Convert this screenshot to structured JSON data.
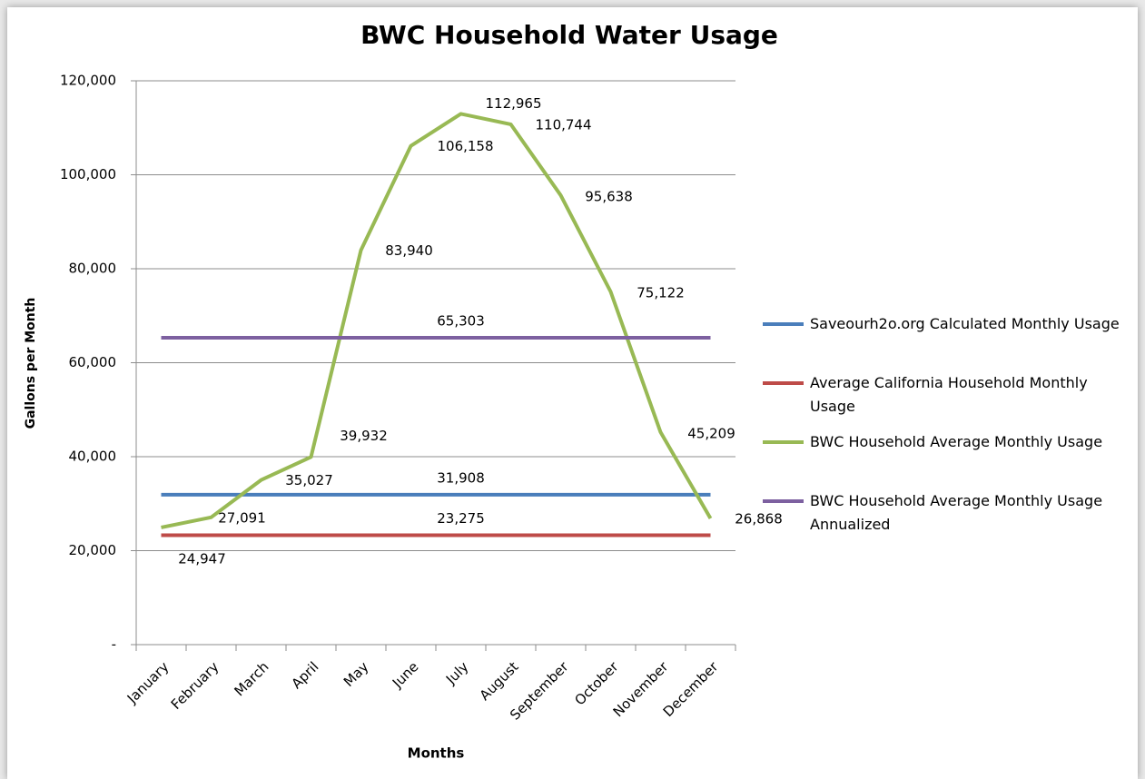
{
  "chart_data": {
    "type": "line",
    "title": "BWC Household Water Usage",
    "x_label": "Months",
    "y_label": "Gallons per Month",
    "categories": [
      "January",
      "February",
      "March",
      "April",
      "May",
      "June",
      "July",
      "August",
      "September",
      "October",
      "November",
      "December"
    ],
    "series": [
      {
        "name": "Saveourh2o.org Calculated Monthly Usage",
        "color": "#4a7ebb",
        "values": [
          31908,
          31908,
          31908,
          31908,
          31908,
          31908,
          31908,
          31908,
          31908,
          31908,
          31908,
          31908
        ],
        "value_labels": {
          "6": "31,908"
        }
      },
      {
        "name": "Average California Household Monthly Usage",
        "color": "#be4b48",
        "values": [
          23275,
          23275,
          23275,
          23275,
          23275,
          23275,
          23275,
          23275,
          23275,
          23275,
          23275,
          23275
        ],
        "value_labels": {
          "6": "23,275"
        }
      },
      {
        "name": "BWC Household Average Monthly Usage",
        "color": "#98b954",
        "values": [
          24947,
          27091,
          35027,
          39932,
          83940,
          106158,
          112965,
          110744,
          95638,
          75122,
          45209,
          26868
        ],
        "value_labels": {
          "0": "24,947",
          "1": "27,091",
          "2": "35,027",
          "3": "39,932",
          "4": "83,940",
          "5": "106,158",
          "6": "112,965",
          "7": "110,744",
          "8": "95,638",
          "9": "75,122",
          "10": "45,209",
          "11": "26,868"
        }
      },
      {
        "name": "BWC Household Average Monthly Usage Annualized",
        "color": "#7d60a0",
        "values": [
          65303,
          65303,
          65303,
          65303,
          65303,
          65303,
          65303,
          65303,
          65303,
          65303,
          65303,
          65303
        ],
        "value_labels": {
          "6": "65,303"
        }
      }
    ],
    "ylim": [
      0,
      120000
    ],
    "yticks": [
      {
        "value": 0,
        "label": "-"
      },
      {
        "value": 20000,
        "label": "20,000"
      },
      {
        "value": 40000,
        "label": "40,000"
      },
      {
        "value": 60000,
        "label": "60,000"
      },
      {
        "value": 80000,
        "label": "80,000"
      },
      {
        "value": 100000,
        "label": "100,000"
      },
      {
        "value": 120000,
        "label": "120,000"
      }
    ],
    "grid": true,
    "legend": "right"
  }
}
